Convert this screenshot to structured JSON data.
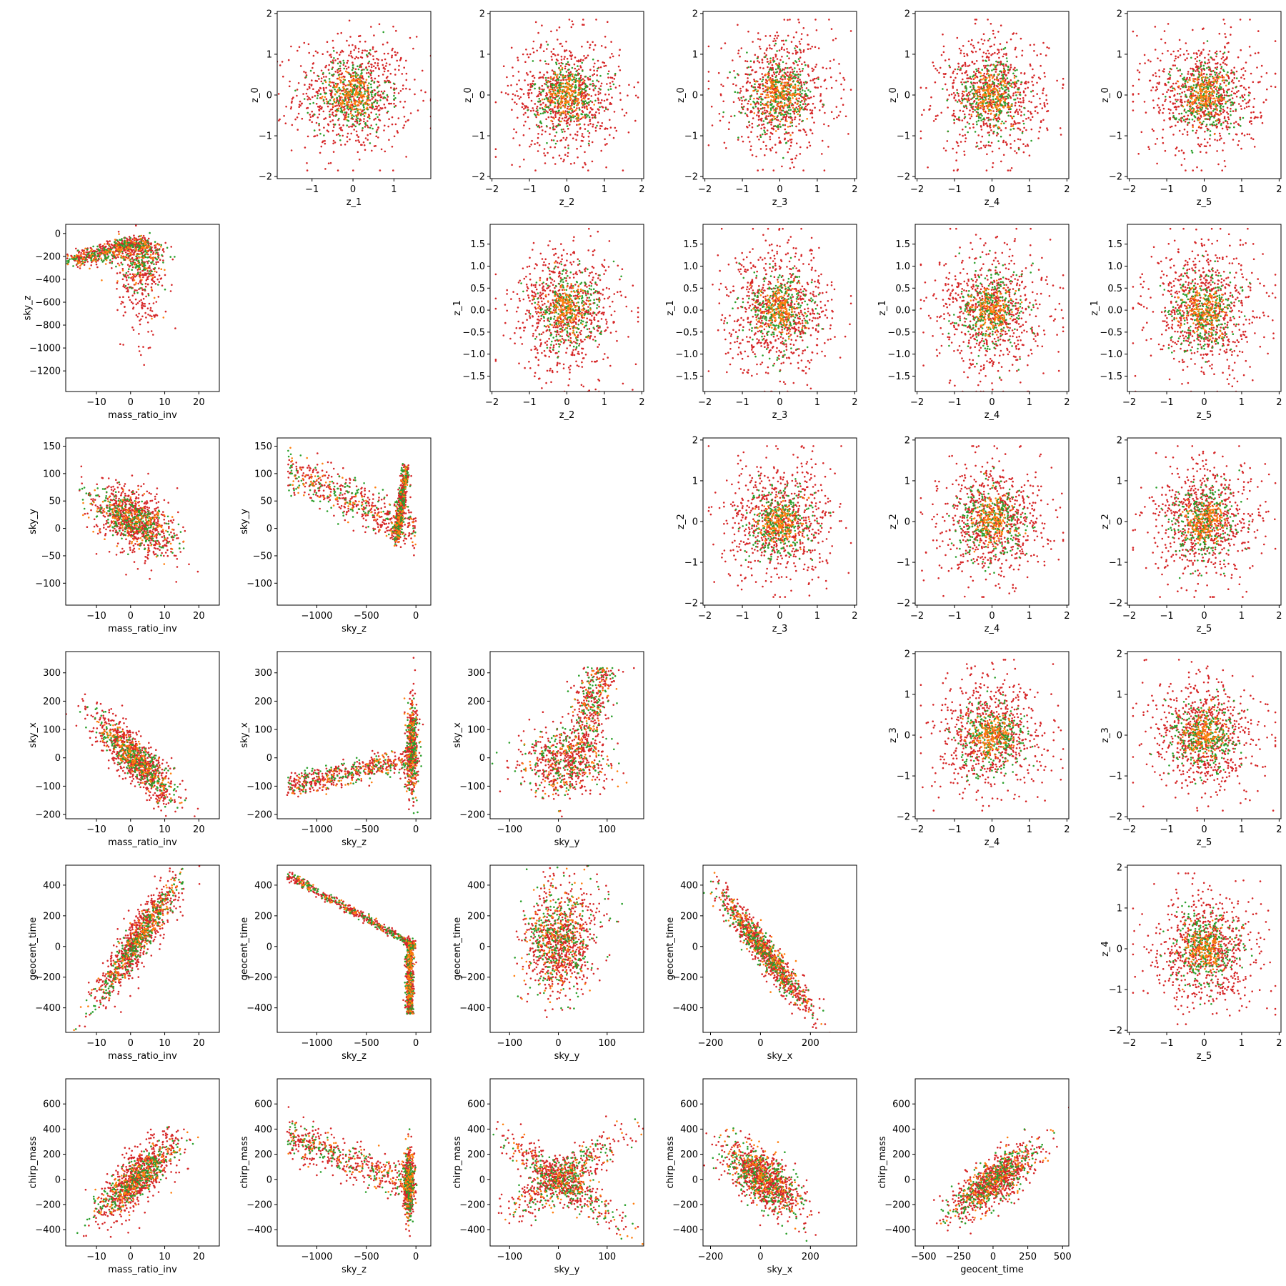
{
  "figure": {
    "type": "pairwise_scatter_grid",
    "rows": 6,
    "cols": 6,
    "point_colors": [
      "#d62728",
      "#2ca02c",
      "#ff7f0e"
    ]
  },
  "chart_data": [
    {
      "type": "scatter",
      "row": 0,
      "col": 1,
      "xlabel": "z_1",
      "ylabel": "z_0",
      "xlim": [
        -1.85,
        1.9
      ],
      "ylim": [
        -2.05,
        2.05
      ],
      "xticks": [
        -1,
        0,
        1
      ],
      "yticks": [
        -2,
        -1,
        0,
        1,
        2
      ],
      "dist": "gauss"
    },
    {
      "type": "scatter",
      "row": 0,
      "col": 2,
      "xlabel": "z_2",
      "ylabel": "z_0",
      "xlim": [
        -2.05,
        2.05
      ],
      "ylim": [
        -2.05,
        2.05
      ],
      "xticks": [
        -2,
        -1,
        0,
        1,
        2
      ],
      "yticks": [
        -2,
        -1,
        0,
        1,
        2
      ],
      "dist": "gauss"
    },
    {
      "type": "scatter",
      "row": 0,
      "col": 3,
      "xlabel": "z_3",
      "ylabel": "z_0",
      "xlim": [
        -2.05,
        2.05
      ],
      "ylim": [
        -2.05,
        2.05
      ],
      "xticks": [
        -2,
        -1,
        0,
        1,
        2
      ],
      "yticks": [
        -2,
        -1,
        0,
        1,
        2
      ],
      "dist": "gauss"
    },
    {
      "type": "scatter",
      "row": 0,
      "col": 4,
      "xlabel": "z_4",
      "ylabel": "z_0",
      "xlim": [
        -2.05,
        2.05
      ],
      "ylim": [
        -2.05,
        2.05
      ],
      "xticks": [
        -2,
        -1,
        0,
        1,
        2
      ],
      "yticks": [
        -2,
        -1,
        0,
        1,
        2
      ],
      "dist": "gauss"
    },
    {
      "type": "scatter",
      "row": 0,
      "col": 5,
      "xlabel": "z_5",
      "ylabel": "z_0",
      "xlim": [
        -2.05,
        2.05
      ],
      "ylim": [
        -2.05,
        2.05
      ],
      "xticks": [
        -2,
        -1,
        0,
        1,
        2
      ],
      "yticks": [
        -2,
        -1,
        0,
        1,
        2
      ],
      "dist": "gauss"
    },
    {
      "type": "scatter",
      "row": 1,
      "col": 0,
      "xlabel": "mass_ratio_inv",
      "ylabel": "sky_z",
      "xlim": [
        -19,
        26
      ],
      "ylim": [
        -1380,
        80
      ],
      "xticks": [
        -10,
        0,
        10,
        20
      ],
      "yticks": [
        -1200,
        -1000,
        -800,
        -600,
        -400,
        -200,
        0
      ],
      "dist": "mr_skyz"
    },
    {
      "type": "scatter",
      "row": 1,
      "col": 2,
      "xlabel": "z_2",
      "ylabel": "z_1",
      "xlim": [
        -2.05,
        2.05
      ],
      "ylim": [
        -1.85,
        1.95
      ],
      "xticks": [
        -2,
        -1,
        0,
        1,
        2
      ],
      "yticks": [
        -1.5,
        -1.0,
        -0.5,
        0.0,
        0.5,
        1.0,
        1.5
      ],
      "ytick_labels": [
        "−1.5",
        "−1.0",
        "−0.5",
        "0.0",
        "0.5",
        "1.0",
        "1.5"
      ],
      "dist": "gauss"
    },
    {
      "type": "scatter",
      "row": 1,
      "col": 3,
      "xlabel": "z_3",
      "ylabel": "z_1",
      "xlim": [
        -2.05,
        2.05
      ],
      "ylim": [
        -1.85,
        1.95
      ],
      "xticks": [
        -2,
        -1,
        0,
        1,
        2
      ],
      "yticks": [
        -1.5,
        -1.0,
        -0.5,
        0.0,
        0.5,
        1.0,
        1.5
      ],
      "ytick_labels": [
        "−1.5",
        "−1.0",
        "−0.5",
        "0.0",
        "0.5",
        "1.0",
        "1.5"
      ],
      "dist": "gauss"
    },
    {
      "type": "scatter",
      "row": 1,
      "col": 4,
      "xlabel": "z_4",
      "ylabel": "z_1",
      "xlim": [
        -2.05,
        2.05
      ],
      "ylim": [
        -1.85,
        1.95
      ],
      "xticks": [
        -2,
        -1,
        0,
        1,
        2
      ],
      "yticks": [
        -1.5,
        -1.0,
        -0.5,
        0.0,
        0.5,
        1.0,
        1.5
      ],
      "ytick_labels": [
        "−1.5",
        "−1.0",
        "−0.5",
        "0.0",
        "0.5",
        "1.0",
        "1.5"
      ],
      "dist": "gauss"
    },
    {
      "type": "scatter",
      "row": 1,
      "col": 5,
      "xlabel": "z_5",
      "ylabel": "z_1",
      "xlim": [
        -2.05,
        2.05
      ],
      "ylim": [
        -1.85,
        1.95
      ],
      "xticks": [
        -2,
        -1,
        0,
        1,
        2
      ],
      "yticks": [
        -1.5,
        -1.0,
        -0.5,
        0.0,
        0.5,
        1.0,
        1.5
      ],
      "ytick_labels": [
        "−1.5",
        "−1.0",
        "−0.5",
        "0.0",
        "0.5",
        "1.0",
        "1.5"
      ],
      "dist": "gauss"
    },
    {
      "type": "scatter",
      "row": 2,
      "col": 0,
      "xlabel": "mass_ratio_inv",
      "ylabel": "sky_y",
      "xlim": [
        -19,
        26
      ],
      "ylim": [
        -140,
        165
      ],
      "xticks": [
        -10,
        0,
        10,
        20
      ],
      "yticks": [
        -100,
        -50,
        0,
        50,
        100,
        150
      ],
      "dist": "mr_skyy"
    },
    {
      "type": "scatter",
      "row": 2,
      "col": 1,
      "xlabel": "sky_z",
      "ylabel": "sky_y",
      "xlim": [
        -1400,
        150
      ],
      "ylim": [
        -140,
        165
      ],
      "xticks": [
        -1000,
        -500,
        0
      ],
      "yticks": [
        -100,
        -50,
        0,
        50,
        100,
        150
      ],
      "dist": "skyz_skyy"
    },
    {
      "type": "scatter",
      "row": 2,
      "col": 3,
      "xlabel": "z_3",
      "ylabel": "z_2",
      "xlim": [
        -2.05,
        2.05
      ],
      "ylim": [
        -2.05,
        2.05
      ],
      "xticks": [
        -2,
        -1,
        0,
        1,
        2
      ],
      "yticks": [
        -2,
        -1,
        0,
        1,
        2
      ],
      "dist": "gauss"
    },
    {
      "type": "scatter",
      "row": 2,
      "col": 4,
      "xlabel": "z_4",
      "ylabel": "z_2",
      "xlim": [
        -2.05,
        2.05
      ],
      "ylim": [
        -2.05,
        2.05
      ],
      "xticks": [
        -2,
        -1,
        0,
        1,
        2
      ],
      "yticks": [
        -2,
        -1,
        0,
        1,
        2
      ],
      "dist": "gauss"
    },
    {
      "type": "scatter",
      "row": 2,
      "col": 5,
      "xlabel": "z_5",
      "ylabel": "z_2",
      "xlim": [
        -2.05,
        2.05
      ],
      "ylim": [
        -2.05,
        2.05
      ],
      "xticks": [
        -2,
        -1,
        0,
        1,
        2
      ],
      "yticks": [
        -2,
        -1,
        0,
        1,
        2
      ],
      "dist": "gauss"
    },
    {
      "type": "scatter",
      "row": 3,
      "col": 0,
      "xlabel": "mass_ratio_inv",
      "ylabel": "sky_x",
      "xlim": [
        -19,
        26
      ],
      "ylim": [
        -215,
        375
      ],
      "xticks": [
        -10,
        0,
        10,
        20
      ],
      "yticks": [
        -200,
        -100,
        0,
        100,
        200,
        300
      ],
      "dist": "mr_skyx"
    },
    {
      "type": "scatter",
      "row": 3,
      "col": 1,
      "xlabel": "sky_z",
      "ylabel": "sky_x",
      "xlim": [
        -1400,
        150
      ],
      "ylim": [
        -215,
        375
      ],
      "xticks": [
        -1000,
        -500,
        0
      ],
      "yticks": [
        -200,
        -100,
        0,
        100,
        200,
        300
      ],
      "dist": "skyz_skyx"
    },
    {
      "type": "scatter",
      "row": 3,
      "col": 2,
      "xlabel": "sky_y",
      "ylabel": "sky_x",
      "xlim": [
        -140,
        175
      ],
      "ylim": [
        -215,
        375
      ],
      "xticks": [
        -100,
        0,
        100
      ],
      "yticks": [
        -200,
        -100,
        0,
        100,
        200,
        300
      ],
      "dist": "skyy_skyx"
    },
    {
      "type": "scatter",
      "row": 3,
      "col": 4,
      "xlabel": "z_4",
      "ylabel": "z_3",
      "xlim": [
        -2.05,
        2.05
      ],
      "ylim": [
        -2.05,
        2.05
      ],
      "xticks": [
        -2,
        -1,
        0,
        1,
        2
      ],
      "yticks": [
        -2,
        -1,
        0,
        1,
        2
      ],
      "dist": "gauss"
    },
    {
      "type": "scatter",
      "row": 3,
      "col": 5,
      "xlabel": "z_5",
      "ylabel": "z_3",
      "xlim": [
        -2.05,
        2.05
      ],
      "ylim": [
        -2.05,
        2.05
      ],
      "xticks": [
        -2,
        -1,
        0,
        1,
        2
      ],
      "yticks": [
        -2,
        -1,
        0,
        1,
        2
      ],
      "dist": "gauss"
    },
    {
      "type": "scatter",
      "row": 4,
      "col": 0,
      "xlabel": "mass_ratio_inv",
      "ylabel": "geocent_time",
      "xlim": [
        -19,
        26
      ],
      "ylim": [
        -560,
        530
      ],
      "xticks": [
        -10,
        0,
        10,
        20
      ],
      "yticks": [
        -400,
        -200,
        0,
        200,
        400
      ],
      "dist": "mr_gt"
    },
    {
      "type": "scatter",
      "row": 4,
      "col": 1,
      "xlabel": "sky_z",
      "ylabel": "geocent_time",
      "xlim": [
        -1400,
        150
      ],
      "ylim": [
        -560,
        530
      ],
      "xticks": [
        -1000,
        -500,
        0
      ],
      "yticks": [
        -400,
        -200,
        0,
        200,
        400
      ],
      "dist": "skyz_gt"
    },
    {
      "type": "scatter",
      "row": 4,
      "col": 2,
      "xlabel": "sky_y",
      "ylabel": "geocent_time",
      "xlim": [
        -140,
        175
      ],
      "ylim": [
        -560,
        530
      ],
      "xticks": [
        -100,
        0,
        100
      ],
      "yticks": [
        -400,
        -200,
        0,
        200,
        400
      ],
      "dist": "skyy_gt"
    },
    {
      "type": "scatter",
      "row": 4,
      "col": 3,
      "xlabel": "sky_x",
      "ylabel": "geocent_time",
      "xlim": [
        -230,
        385
      ],
      "ylim": [
        -560,
        530
      ],
      "xticks": [
        -200,
        0,
        200
      ],
      "yticks": [
        -400,
        -200,
        0,
        200,
        400
      ],
      "dist": "skyx_gt"
    },
    {
      "type": "scatter",
      "row": 4,
      "col": 5,
      "xlabel": "z_5",
      "ylabel": "z_4",
      "xlim": [
        -2.05,
        2.05
      ],
      "ylim": [
        -2.05,
        2.05
      ],
      "xticks": [
        -2,
        -1,
        0,
        1,
        2
      ],
      "yticks": [
        -2,
        -1,
        0,
        1,
        2
      ],
      "dist": "gauss"
    },
    {
      "type": "scatter",
      "row": 5,
      "col": 0,
      "xlabel": "mass_ratio_inv",
      "ylabel": "chirp_mass",
      "xlim": [
        -19,
        26
      ],
      "ylim": [
        -530,
        800
      ],
      "xticks": [
        -10,
        0,
        10,
        20
      ],
      "yticks": [
        -400,
        -200,
        0,
        200,
        400,
        600
      ],
      "dist": "mr_cm"
    },
    {
      "type": "scatter",
      "row": 5,
      "col": 1,
      "xlabel": "sky_z",
      "ylabel": "chirp_mass",
      "xlim": [
        -1400,
        150
      ],
      "ylim": [
        -530,
        800
      ],
      "xticks": [
        -1000,
        -500,
        0
      ],
      "yticks": [
        -400,
        -200,
        0,
        200,
        400,
        600
      ],
      "dist": "skyz_cm"
    },
    {
      "type": "scatter",
      "row": 5,
      "col": 2,
      "xlabel": "sky_y",
      "ylabel": "chirp_mass",
      "xlim": [
        -140,
        175
      ],
      "ylim": [
        -530,
        800
      ],
      "xticks": [
        -100,
        0,
        100
      ],
      "yticks": [
        -400,
        -200,
        0,
        200,
        400,
        600
      ],
      "dist": "skyy_cm"
    },
    {
      "type": "scatter",
      "row": 5,
      "col": 3,
      "xlabel": "sky_x",
      "ylabel": "chirp_mass",
      "xlim": [
        -230,
        385
      ],
      "ylim": [
        -530,
        800
      ],
      "xticks": [
        -200,
        0,
        200
      ],
      "yticks": [
        -400,
        -200,
        0,
        200,
        400,
        600
      ],
      "dist": "skyx_cm"
    },
    {
      "type": "scatter",
      "row": 5,
      "col": 4,
      "xlabel": "geocent_time",
      "ylabel": "chirp_mass",
      "xlim": [
        -560,
        545
      ],
      "ylim": [
        -530,
        800
      ],
      "xticks": [
        -500,
        -250,
        0,
        250,
        500
      ],
      "yticks": [
        -400,
        -200,
        0,
        200,
        400,
        600
      ],
      "dist": "gt_cm"
    }
  ]
}
